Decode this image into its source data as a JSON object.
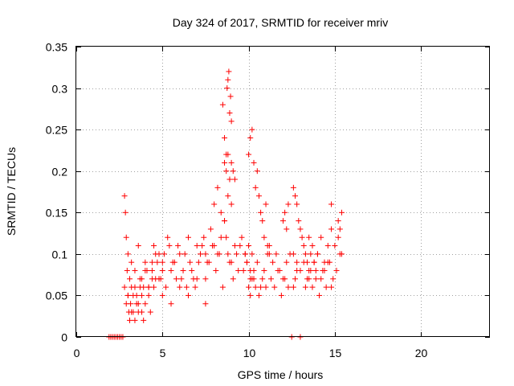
{
  "chart_data": {
    "type": "scatter",
    "title": "Day 324 of 2017, SRMTID for receiver mriv",
    "xlabel": "GPS time / hours",
    "ylabel": "SRMTID / TECUs",
    "xlim": [
      0,
      24
    ],
    "ylim": [
      0,
      0.35
    ],
    "xticks": [
      0,
      5,
      10,
      15,
      20
    ],
    "yticks": [
      0,
      0.05,
      0.1,
      0.15,
      0.2,
      0.25,
      0.3,
      0.35
    ],
    "xtick_labels": [
      "0",
      "5",
      "10",
      "15",
      "20"
    ],
    "ytick_labels": [
      "0",
      "0.05",
      "0.1",
      "0.15",
      "0.2",
      "0.25",
      "0.3",
      "0.35"
    ],
    "grid": true,
    "marker": "+",
    "color": "#ff0000",
    "series": [
      {
        "x": [
          1.9,
          2.0,
          2.1,
          2.2,
          2.3,
          2.4,
          2.5,
          2.6,
          2.7,
          12.5,
          13.0,
          2.8,
          2.85,
          2.9,
          2.95,
          3.0,
          3.05,
          3.1,
          3.15,
          3.2,
          3.3,
          3.4,
          3.5,
          3.6,
          3.7,
          3.8,
          3.9,
          2.8,
          2.9,
          3.0,
          3.1,
          3.2,
          3.3,
          3.4,
          3.5,
          3.6,
          3.7,
          3.8,
          3.9,
          4.0,
          4.1,
          4.2,
          4.3,
          4.4,
          4.5,
          3.0,
          3.2,
          3.4,
          3.6,
          3.8,
          4.0,
          4.2,
          4.4,
          4.6,
          4.8,
          5.0,
          4.0,
          4.2,
          4.4,
          4.6,
          4.8,
          5.0,
          5.2,
          5.4,
          5.6,
          5.8,
          6.0,
          6.2,
          6.4,
          6.6,
          6.8,
          7.0,
          4.5,
          4.7,
          4.9,
          5.1,
          5.3,
          5.5,
          5.7,
          5.9,
          6.1,
          6.3,
          6.5,
          6.7,
          6.9,
          7.1,
          7.3,
          7.5,
          5.0,
          5.5,
          6.0,
          6.5,
          7.0,
          7.5,
          7.2,
          7.4,
          7.6,
          7.8,
          8.0,
          8.2,
          8.4,
          8.6,
          8.8,
          9.0,
          9.2,
          9.4,
          9.6,
          9.8,
          7.5,
          7.7,
          7.9,
          8.1,
          8.3,
          8.5,
          8.7,
          8.9,
          9.1,
          9.3,
          9.5,
          9.7,
          9.9,
          10.1,
          8.0,
          8.2,
          8.4,
          8.6,
          8.8,
          9.0,
          9.2,
          8.5,
          8.6,
          8.7,
          8.75,
          8.8,
          8.85,
          8.9,
          8.95,
          9.0,
          8.6,
          8.7,
          8.8,
          8.9,
          9.0,
          9.1,
          10.0,
          10.1,
          10.2,
          10.3,
          10.4,
          10.5,
          10.6,
          10.7,
          10.8,
          10.9,
          11.0,
          11.1,
          11.2,
          9.8,
          9.9,
          10.0,
          10.1,
          10.2,
          10.3,
          10.5,
          10.7,
          10.9,
          11.1,
          10.0,
          10.1,
          10.2,
          10.3,
          10.4,
          10.6,
          10.8,
          11.0,
          11.2,
          11.4,
          11.6,
          11.8,
          12.0,
          12.2,
          12.4,
          11.3,
          11.5,
          11.7,
          11.9,
          12.1,
          12.3,
          12.0,
          12.1,
          12.2,
          12.3,
          12.6,
          12.7,
          12.8,
          12.9,
          13.0,
          13.1,
          13.2,
          13.3,
          13.4,
          13.5,
          13.6,
          13.7,
          13.8,
          13.9,
          12.6,
          12.8,
          13.0,
          13.2,
          13.4,
          13.6,
          13.8,
          14.0,
          14.2,
          14.4,
          14.6,
          14.8,
          13.5,
          13.7,
          13.9,
          14.1,
          14.3,
          14.5,
          14.7,
          14.9,
          15.1,
          15.3,
          14.0,
          14.2,
          14.4,
          14.6,
          14.8,
          15.0,
          15.2,
          15.4,
          12.6,
          12.7,
          12.8,
          13.3,
          13.5,
          14.8,
          15.2,
          15.3,
          15.4
        ],
        "y": [
          0.0,
          0.0,
          0.0,
          0.0,
          0.0,
          0.0,
          0.0,
          0.0,
          0.0,
          0.0,
          0.0,
          0.17,
          0.15,
          0.12,
          0.08,
          0.05,
          0.03,
          0.02,
          0.04,
          0.06,
          0.03,
          0.02,
          0.05,
          0.04,
          0.06,
          0.03,
          0.02,
          0.06,
          0.04,
          0.05,
          0.07,
          0.03,
          0.05,
          0.06,
          0.04,
          0.03,
          0.07,
          0.05,
          0.06,
          0.04,
          0.08,
          0.05,
          0.03,
          0.07,
          0.06,
          0.1,
          0.09,
          0.08,
          0.11,
          0.07,
          0.09,
          0.06,
          0.08,
          0.1,
          0.07,
          0.09,
          0.08,
          0.06,
          0.09,
          0.07,
          0.1,
          0.08,
          0.06,
          0.11,
          0.09,
          0.07,
          0.1,
          0.08,
          0.06,
          0.09,
          0.07,
          0.11,
          0.11,
          0.09,
          0.07,
          0.1,
          0.12,
          0.08,
          0.09,
          0.11,
          0.07,
          0.1,
          0.12,
          0.08,
          0.06,
          0.09,
          0.11,
          0.1,
          0.05,
          0.04,
          0.06,
          0.05,
          0.07,
          0.04,
          0.1,
          0.12,
          0.09,
          0.13,
          0.11,
          0.1,
          0.12,
          0.14,
          0.1,
          0.09,
          0.11,
          0.08,
          0.12,
          0.1,
          0.07,
          0.09,
          0.11,
          0.08,
          0.1,
          0.06,
          0.12,
          0.09,
          0.07,
          0.1,
          0.11,
          0.08,
          0.09,
          0.07,
          0.16,
          0.18,
          0.15,
          0.14,
          0.17,
          0.16,
          0.19,
          0.28,
          0.24,
          0.22,
          0.3,
          0.31,
          0.32,
          0.27,
          0.29,
          0.26,
          0.21,
          0.2,
          0.22,
          0.19,
          0.21,
          0.2,
          0.22,
          0.24,
          0.25,
          0.21,
          0.18,
          0.2,
          0.17,
          0.15,
          0.14,
          0.12,
          0.16,
          0.11,
          0.1,
          0.1,
          0.09,
          0.11,
          0.08,
          0.1,
          0.07,
          0.09,
          0.06,
          0.08,
          0.1,
          0.06,
          0.05,
          0.07,
          0.08,
          0.06,
          0.05,
          0.07,
          0.06,
          0.11,
          0.09,
          0.1,
          0.08,
          0.07,
          0.09,
          0.1,
          0.07,
          0.06,
          0.08,
          0.05,
          0.07,
          0.06,
          0.14,
          0.15,
          0.13,
          0.16,
          0.18,
          0.17,
          0.16,
          0.14,
          0.13,
          0.12,
          0.11,
          0.1,
          0.09,
          0.12,
          0.1,
          0.11,
          0.09,
          0.08,
          0.1,
          0.09,
          0.08,
          0.09,
          0.07,
          0.08,
          0.09,
          0.1,
          0.07,
          0.08,
          0.09,
          0.06,
          0.08,
          0.06,
          0.07,
          0.05,
          0.08,
          0.06,
          0.09,
          0.07,
          0.08,
          0.1,
          0.1,
          0.12,
          0.09,
          0.11,
          0.13,
          0.11,
          0.14,
          0.15,
          0.06,
          0.07,
          0.08,
          0.06,
          0.07,
          0.16,
          0.12,
          0.13,
          0.1
        ]
      }
    ]
  }
}
